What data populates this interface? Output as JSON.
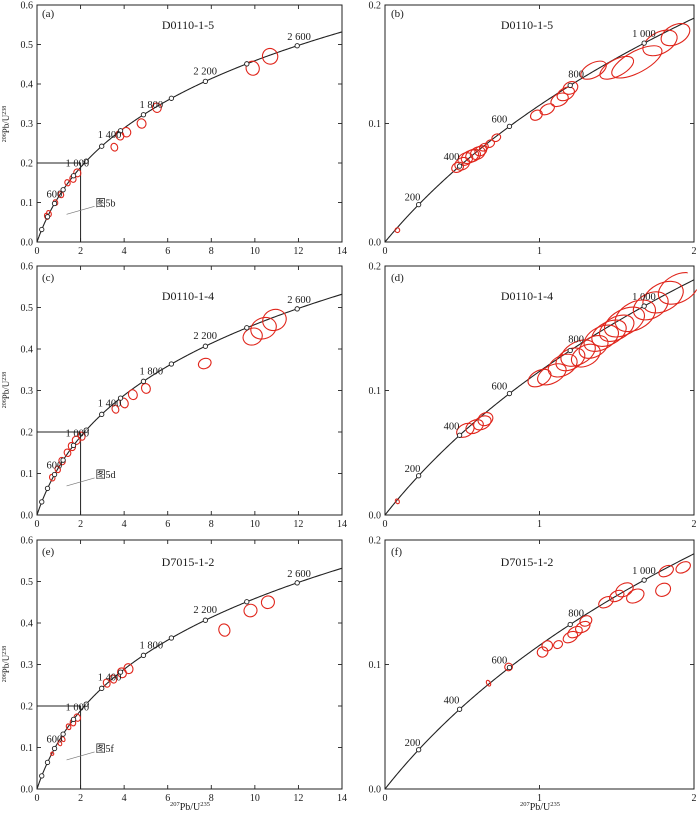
{
  "figure": {
    "x_axis_label_main": "Pb/U",
    "x_axis_label_sup1": "207",
    "x_axis_label_sup2": "235",
    "y_axis_label_main": "Pb/U",
    "y_axis_label_sup1": "206",
    "y_axis_label_sup2": "238"
  },
  "chart_data": [
    {
      "type": "scatter",
      "panel": "(a)",
      "title": "D0110-1-5",
      "xlim": [
        0,
        14
      ],
      "ylim": [
        0,
        0.6
      ],
      "xticks": [
        0,
        2,
        4,
        6,
        8,
        10,
        12,
        14
      ],
      "yticks": [
        0,
        0.1,
        0.2,
        0.3,
        0.4,
        0.5,
        0.6
      ],
      "xtick_labels": [
        "0",
        "2",
        "4",
        "6",
        "8",
        "10",
        "12",
        "14"
      ],
      "ytick_labels": [
        "0.0",
        "0.1",
        "0.2",
        "0.3",
        "0.4",
        "0.5",
        "0.6"
      ],
      "concordia_ages_ma": [
        200,
        400,
        600,
        800,
        1000,
        1200,
        1400,
        1600,
        1800,
        2000,
        2200,
        2400,
        2600
      ],
      "age_labels": [
        {
          "age": 600,
          "text": "600"
        },
        {
          "age": 1000,
          "text": "1 000"
        },
        {
          "age": 1400,
          "text": "1 400"
        },
        {
          "age": 1800,
          "text": "1 800"
        },
        {
          "age": 2200,
          "text": "2 200"
        },
        {
          "age": 2600,
          "text": "2 600"
        }
      ],
      "inset_box": {
        "x": [
          0,
          2
        ],
        "y": [
          0,
          0.2
        ],
        "label": "图5b"
      },
      "error_ellipses": [
        {
          "x": 0.45,
          "y": 0.065,
          "rx": 0.1,
          "ry": 0.008
        },
        {
          "x": 0.55,
          "y": 0.072,
          "rx": 0.1,
          "ry": 0.008
        },
        {
          "x": 0.85,
          "y": 0.1,
          "rx": 0.1,
          "ry": 0.007
        },
        {
          "x": 1.1,
          "y": 0.12,
          "rx": 0.12,
          "ry": 0.008
        },
        {
          "x": 1.4,
          "y": 0.15,
          "rx": 0.12,
          "ry": 0.008
        },
        {
          "x": 1.65,
          "y": 0.16,
          "rx": 0.14,
          "ry": 0.009
        },
        {
          "x": 1.85,
          "y": 0.175,
          "rx": 0.16,
          "ry": 0.01
        },
        {
          "x": 3.55,
          "y": 0.24,
          "rx": 0.15,
          "ry": 0.01
        },
        {
          "x": 3.8,
          "y": 0.27,
          "rx": 0.18,
          "ry": 0.012
        },
        {
          "x": 4.1,
          "y": 0.278,
          "rx": 0.2,
          "ry": 0.012
        },
        {
          "x": 4.8,
          "y": 0.3,
          "rx": 0.2,
          "ry": 0.012
        },
        {
          "x": 5.5,
          "y": 0.34,
          "rx": 0.2,
          "ry": 0.012
        },
        {
          "x": 9.9,
          "y": 0.44,
          "rx": 0.3,
          "ry": 0.018
        },
        {
          "x": 10.7,
          "y": 0.47,
          "rx": 0.35,
          "ry": 0.02
        }
      ]
    },
    {
      "type": "scatter",
      "panel": "(b)",
      "title": "D0110-1-5",
      "xlim": [
        0,
        2
      ],
      "ylim": [
        0,
        0.2
      ],
      "xticks": [
        0,
        1,
        2
      ],
      "yticks": [
        0,
        0.1,
        0.2
      ],
      "xtick_labels": [
        "0",
        "1",
        "2"
      ],
      "ytick_labels": [
        "0.0",
        "0.1",
        "0.2"
      ],
      "concordia_ages_ma": [
        200,
        400,
        600,
        800,
        1000
      ],
      "age_labels": [
        {
          "age": 200,
          "text": "200"
        },
        {
          "age": 400,
          "text": "400"
        },
        {
          "age": 600,
          "text": "600"
        },
        {
          "age": 800,
          "text": "800"
        },
        {
          "age": 1000,
          "text": "1 000"
        }
      ],
      "error_ellipses": [
        {
          "x": 0.08,
          "y": 0.01,
          "rx": 0.015,
          "ry": 0.002
        },
        {
          "x": 0.47,
          "y": 0.063,
          "rx": 0.04,
          "ry": 0.004
        },
        {
          "x": 0.5,
          "y": 0.066,
          "rx": 0.05,
          "ry": 0.005
        },
        {
          "x": 0.52,
          "y": 0.07,
          "rx": 0.05,
          "ry": 0.005
        },
        {
          "x": 0.55,
          "y": 0.072,
          "rx": 0.06,
          "ry": 0.005
        },
        {
          "x": 0.57,
          "y": 0.073,
          "rx": 0.05,
          "ry": 0.005
        },
        {
          "x": 0.6,
          "y": 0.075,
          "rx": 0.05,
          "ry": 0.005
        },
        {
          "x": 0.62,
          "y": 0.077,
          "rx": 0.04,
          "ry": 0.004
        },
        {
          "x": 0.64,
          "y": 0.08,
          "rx": 0.03,
          "ry": 0.003
        },
        {
          "x": 0.68,
          "y": 0.083,
          "rx": 0.03,
          "ry": 0.003
        },
        {
          "x": 0.72,
          "y": 0.088,
          "rx": 0.03,
          "ry": 0.003
        },
        {
          "x": 0.98,
          "y": 0.107,
          "rx": 0.04,
          "ry": 0.004
        },
        {
          "x": 1.05,
          "y": 0.112,
          "rx": 0.05,
          "ry": 0.004
        },
        {
          "x": 1.13,
          "y": 0.12,
          "rx": 0.06,
          "ry": 0.005
        },
        {
          "x": 1.17,
          "y": 0.125,
          "rx": 0.06,
          "ry": 0.005
        },
        {
          "x": 1.2,
          "y": 0.13,
          "rx": 0.05,
          "ry": 0.005
        },
        {
          "x": 1.35,
          "y": 0.145,
          "rx": 0.09,
          "ry": 0.006
        },
        {
          "x": 1.5,
          "y": 0.147,
          "rx": 0.12,
          "ry": 0.007
        },
        {
          "x": 1.63,
          "y": 0.152,
          "rx": 0.18,
          "ry": 0.009
        },
        {
          "x": 1.78,
          "y": 0.168,
          "rx": 0.12,
          "ry": 0.009
        },
        {
          "x": 1.88,
          "y": 0.175,
          "rx": 0.1,
          "ry": 0.008
        }
      ]
    },
    {
      "type": "scatter",
      "panel": "(c)",
      "title": "D0110-1-4",
      "xlim": [
        0,
        14
      ],
      "ylim": [
        0,
        0.6
      ],
      "xticks": [
        0,
        2,
        4,
        6,
        8,
        10,
        12,
        14
      ],
      "yticks": [
        0,
        0.1,
        0.2,
        0.3,
        0.4,
        0.5,
        0.6
      ],
      "xtick_labels": [
        "0",
        "2",
        "4",
        "6",
        "8",
        "10",
        "12",
        "14"
      ],
      "ytick_labels": [
        "0.0",
        "0.1",
        "0.2",
        "0.3",
        "0.4",
        "0.5",
        "0.6"
      ],
      "concordia_ages_ma": [
        200,
        400,
        600,
        800,
        1000,
        1200,
        1400,
        1600,
        1800,
        2000,
        2200,
        2400,
        2600
      ],
      "age_labels": [
        {
          "age": 600,
          "text": "600"
        },
        {
          "age": 1000,
          "text": "1 000"
        },
        {
          "age": 1400,
          "text": "1 400"
        },
        {
          "age": 1800,
          "text": "1 800"
        },
        {
          "age": 2200,
          "text": "2 200"
        },
        {
          "age": 2600,
          "text": "2 600"
        }
      ],
      "inset_box": {
        "x": [
          0,
          2
        ],
        "y": [
          0,
          0.2
        ],
        "label": "图5d"
      },
      "error_ellipses": [
        {
          "x": 0.7,
          "y": 0.09,
          "rx": 0.12,
          "ry": 0.008
        },
        {
          "x": 0.95,
          "y": 0.11,
          "rx": 0.12,
          "ry": 0.008
        },
        {
          "x": 1.15,
          "y": 0.13,
          "rx": 0.14,
          "ry": 0.009
        },
        {
          "x": 1.4,
          "y": 0.15,
          "rx": 0.15,
          "ry": 0.009
        },
        {
          "x": 1.6,
          "y": 0.165,
          "rx": 0.16,
          "ry": 0.01
        },
        {
          "x": 1.8,
          "y": 0.18,
          "rx": 0.18,
          "ry": 0.01
        },
        {
          "x": 2.05,
          "y": 0.19,
          "rx": 0.15,
          "ry": 0.01
        },
        {
          "x": 3.6,
          "y": 0.255,
          "rx": 0.15,
          "ry": 0.01
        },
        {
          "x": 4.0,
          "y": 0.27,
          "rx": 0.18,
          "ry": 0.012
        },
        {
          "x": 4.4,
          "y": 0.29,
          "rx": 0.2,
          "ry": 0.012
        },
        {
          "x": 5.0,
          "y": 0.305,
          "rx": 0.2,
          "ry": 0.012
        },
        {
          "x": 7.7,
          "y": 0.365,
          "rx": 0.3,
          "ry": 0.012
        },
        {
          "x": 9.9,
          "y": 0.43,
          "rx": 0.45,
          "ry": 0.02
        },
        {
          "x": 10.4,
          "y": 0.45,
          "rx": 0.6,
          "ry": 0.025
        },
        {
          "x": 10.9,
          "y": 0.47,
          "rx": 0.55,
          "ry": 0.025
        }
      ]
    },
    {
      "type": "scatter",
      "panel": "(d)",
      "title": "D0110-1-4",
      "xlim": [
        0,
        2
      ],
      "ylim": [
        0,
        0.2
      ],
      "xticks": [
        0,
        1,
        2
      ],
      "yticks": [
        0,
        0.1,
        0.2
      ],
      "xtick_labels": [
        "0",
        "1",
        "2"
      ],
      "ytick_labels": [
        "0.0",
        "0.1",
        "0.2"
      ],
      "concordia_ages_ma": [
        200,
        400,
        600,
        800,
        1000
      ],
      "age_labels": [
        {
          "age": 200,
          "text": "200"
        },
        {
          "age": 400,
          "text": "400"
        },
        {
          "age": 600,
          "text": "600"
        },
        {
          "age": 800,
          "text": "800"
        },
        {
          "age": 1000,
          "text": "1 000"
        }
      ],
      "error_ellipses": [
        {
          "x": 0.08,
          "y": 0.011,
          "rx": 0.012,
          "ry": 0.002
        },
        {
          "x": 0.52,
          "y": 0.068,
          "rx": 0.06,
          "ry": 0.005
        },
        {
          "x": 0.58,
          "y": 0.071,
          "rx": 0.06,
          "ry": 0.005
        },
        {
          "x": 0.63,
          "y": 0.074,
          "rx": 0.06,
          "ry": 0.005
        },
        {
          "x": 0.65,
          "y": 0.077,
          "rx": 0.05,
          "ry": 0.005
        },
        {
          "x": 1.0,
          "y": 0.11,
          "rx": 0.08,
          "ry": 0.006
        },
        {
          "x": 1.08,
          "y": 0.113,
          "rx": 0.1,
          "ry": 0.007
        },
        {
          "x": 1.15,
          "y": 0.12,
          "rx": 0.1,
          "ry": 0.008
        },
        {
          "x": 1.2,
          "y": 0.125,
          "rx": 0.1,
          "ry": 0.008
        },
        {
          "x": 1.25,
          "y": 0.13,
          "rx": 0.12,
          "ry": 0.009
        },
        {
          "x": 1.3,
          "y": 0.128,
          "rx": 0.1,
          "ry": 0.008
        },
        {
          "x": 1.35,
          "y": 0.135,
          "rx": 0.1,
          "ry": 0.008
        },
        {
          "x": 1.4,
          "y": 0.142,
          "rx": 0.12,
          "ry": 0.009
        },
        {
          "x": 1.45,
          "y": 0.146,
          "rx": 0.12,
          "ry": 0.009
        },
        {
          "x": 1.5,
          "y": 0.15,
          "rx": 0.12,
          "ry": 0.009
        },
        {
          "x": 1.55,
          "y": 0.155,
          "rx": 0.14,
          "ry": 0.01
        },
        {
          "x": 1.62,
          "y": 0.16,
          "rx": 0.14,
          "ry": 0.011
        },
        {
          "x": 1.72,
          "y": 0.168,
          "rx": 0.12,
          "ry": 0.01
        },
        {
          "x": 1.8,
          "y": 0.175,
          "rx": 0.14,
          "ry": 0.011
        },
        {
          "x": 1.9,
          "y": 0.182,
          "rx": 0.14,
          "ry": 0.011
        }
      ]
    },
    {
      "type": "scatter",
      "panel": "(e)",
      "title": "D7015-1-2",
      "xlim": [
        0,
        14
      ],
      "ylim": [
        0,
        0.6
      ],
      "xticks": [
        0,
        2,
        4,
        6,
        8,
        10,
        12,
        14
      ],
      "yticks": [
        0,
        0.1,
        0.2,
        0.3,
        0.4,
        0.5,
        0.6
      ],
      "xtick_labels": [
        "0",
        "2",
        "4",
        "6",
        "8",
        "10",
        "12",
        "14"
      ],
      "ytick_labels": [
        "0.0",
        "0.1",
        "0.2",
        "0.3",
        "0.4",
        "0.5",
        "0.6"
      ],
      "concordia_ages_ma": [
        200,
        400,
        600,
        800,
        1000,
        1200,
        1400,
        1600,
        1800,
        2000,
        2200,
        2400,
        2600
      ],
      "age_labels": [
        {
          "age": 600,
          "text": "600"
        },
        {
          "age": 1000,
          "text": "1 000"
        },
        {
          "age": 1400,
          "text": "1 400"
        },
        {
          "age": 1800,
          "text": "1 800"
        },
        {
          "age": 2200,
          "text": "2 200"
        },
        {
          "age": 2600,
          "text": "2 600"
        }
      ],
      "inset_box": {
        "x": [
          0,
          2
        ],
        "y": [
          0,
          0.2
        ],
        "label": "图5f"
      },
      "error_ellipses": [
        {
          "x": 0.7,
          "y": 0.085,
          "rx": 0.05,
          "ry": 0.004
        },
        {
          "x": 1.05,
          "y": 0.11,
          "rx": 0.08,
          "ry": 0.006
        },
        {
          "x": 1.2,
          "y": 0.12,
          "rx": 0.08,
          "ry": 0.006
        },
        {
          "x": 1.45,
          "y": 0.15,
          "rx": 0.1,
          "ry": 0.007
        },
        {
          "x": 1.65,
          "y": 0.16,
          "rx": 0.12,
          "ry": 0.008
        },
        {
          "x": 1.85,
          "y": 0.172,
          "rx": 0.14,
          "ry": 0.009
        },
        {
          "x": 3.2,
          "y": 0.255,
          "rx": 0.15,
          "ry": 0.01
        },
        {
          "x": 3.5,
          "y": 0.265,
          "rx": 0.15,
          "ry": 0.01
        },
        {
          "x": 3.9,
          "y": 0.28,
          "rx": 0.2,
          "ry": 0.012
        },
        {
          "x": 4.2,
          "y": 0.29,
          "rx": 0.2,
          "ry": 0.012
        },
        {
          "x": 8.6,
          "y": 0.383,
          "rx": 0.25,
          "ry": 0.015
        },
        {
          "x": 9.8,
          "y": 0.43,
          "rx": 0.3,
          "ry": 0.015
        },
        {
          "x": 10.6,
          "y": 0.45,
          "rx": 0.3,
          "ry": 0.015
        }
      ]
    },
    {
      "type": "scatter",
      "panel": "(f)",
      "title": "D7015-1-2",
      "xlim": [
        0,
        2
      ],
      "ylim": [
        0,
        0.2
      ],
      "xticks": [
        0,
        1,
        2
      ],
      "yticks": [
        0,
        0.1,
        0.2
      ],
      "xtick_labels": [
        "0",
        "1",
        "2"
      ],
      "ytick_labels": [
        "0.0",
        "0.1",
        "0.2"
      ],
      "concordia_ages_ma": [
        200,
        400,
        600,
        800,
        1000
      ],
      "age_labels": [
        {
          "age": 200,
          "text": "200"
        },
        {
          "age": 400,
          "text": "400"
        },
        {
          "age": 600,
          "text": "600"
        },
        {
          "age": 800,
          "text": "800"
        },
        {
          "age": 1000,
          "text": "1 000"
        }
      ],
      "error_ellipses": [
        {
          "x": 0.67,
          "y": 0.085,
          "rx": 0.012,
          "ry": 0.0025
        },
        {
          "x": 0.8,
          "y": 0.098,
          "rx": 0.025,
          "ry": 0.003
        },
        {
          "x": 1.02,
          "y": 0.11,
          "rx": 0.035,
          "ry": 0.004
        },
        {
          "x": 1.05,
          "y": 0.115,
          "rx": 0.035,
          "ry": 0.004
        },
        {
          "x": 1.12,
          "y": 0.116,
          "rx": 0.03,
          "ry": 0.003
        },
        {
          "x": 1.2,
          "y": 0.122,
          "rx": 0.05,
          "ry": 0.004
        },
        {
          "x": 1.23,
          "y": 0.126,
          "rx": 0.05,
          "ry": 0.004
        },
        {
          "x": 1.28,
          "y": 0.13,
          "rx": 0.05,
          "ry": 0.004
        },
        {
          "x": 1.3,
          "y": 0.135,
          "rx": 0.04,
          "ry": 0.004
        },
        {
          "x": 1.43,
          "y": 0.15,
          "rx": 0.05,
          "ry": 0.004
        },
        {
          "x": 1.5,
          "y": 0.155,
          "rx": 0.05,
          "ry": 0.004
        },
        {
          "x": 1.55,
          "y": 0.16,
          "rx": 0.06,
          "ry": 0.005
        },
        {
          "x": 1.62,
          "y": 0.155,
          "rx": 0.06,
          "ry": 0.005
        },
        {
          "x": 1.8,
          "y": 0.16,
          "rx": 0.05,
          "ry": 0.005
        },
        {
          "x": 1.82,
          "y": 0.175,
          "rx": 0.05,
          "ry": 0.004
        },
        {
          "x": 1.93,
          "y": 0.178,
          "rx": 0.05,
          "ry": 0.004
        }
      ]
    }
  ]
}
